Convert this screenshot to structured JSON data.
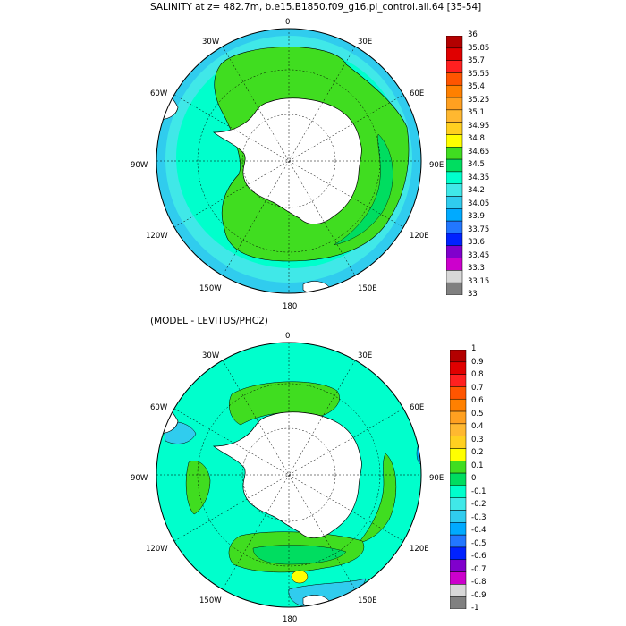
{
  "panels": [
    {
      "title": "SALINITY at z= 482.7m, b.e15.B1850.f09_g16.pi_control.all.64 [35-54]",
      "colorbar": {
        "labels": [
          "36",
          "35.85",
          "35.7",
          "35.55",
          "35.4",
          "35.25",
          "35.1",
          "34.95",
          "34.8",
          "34.65",
          "34.5",
          "34.35",
          "34.2",
          "34.05",
          "33.9",
          "33.75",
          "33.6",
          "33.45",
          "33.3",
          "33.15",
          "33"
        ],
        "colors": [
          "#b30000",
          "#e00000",
          "#ff2020",
          "#ff5500",
          "#ff8000",
          "#ffa020",
          "#ffb830",
          "#ffd020",
          "#ffff00",
          "#40dd20",
          "#00dd60",
          "#00ffcc",
          "#40e8e8",
          "#30ccee",
          "#00aaff",
          "#2277ff",
          "#0022ff",
          "#8000cc",
          "#cc00cc",
          "#d8d8d8",
          "#808080"
        ]
      },
      "map_labels": {
        "lon_0": "0",
        "lon_30e": "30E",
        "lon_60e": "60E",
        "lon_90e": "90E",
        "lon_120e": "120E",
        "lon_150e": "150E",
        "lon_180": "180",
        "lon_150w": "150W",
        "lon_120w": "120W",
        "lon_90w": "90W",
        "lon_60w": "60W",
        "lon_30w": "30W"
      }
    },
    {
      "title": "(MODEL - LEVITUS/PHC2)",
      "colorbar": {
        "labels": [
          "1",
          "0.9",
          "0.8",
          "0.7",
          "0.6",
          "0.5",
          "0.4",
          "0.3",
          "0.2",
          "0.1",
          "0",
          "-0.1",
          "-0.2",
          "-0.3",
          "-0.4",
          "-0.5",
          "-0.6",
          "-0.7",
          "-0.8",
          "-0.9",
          "-1"
        ],
        "colors": [
          "#b30000",
          "#e00000",
          "#ff2020",
          "#ff5500",
          "#ff8000",
          "#ffa020",
          "#ffb830",
          "#ffd020",
          "#ffff00",
          "#40dd20",
          "#00dd60",
          "#00ffcc",
          "#40e8e8",
          "#30ccee",
          "#00aaff",
          "#2277ff",
          "#0022ff",
          "#8000cc",
          "#cc00cc",
          "#d8d8d8",
          "#808080"
        ]
      },
      "map_labels": {
        "lon_0": "0",
        "lon_30e": "30E",
        "lon_60e": "60E",
        "lon_90e": "90E",
        "lon_120e": "120E",
        "lon_150e": "150E",
        "lon_180": "180",
        "lon_150w": "150W",
        "lon_120w": "120W",
        "lon_90w": "90W",
        "lon_60w": "60W",
        "lon_30w": "30W"
      }
    }
  ],
  "colors": {
    "land": "#ffffff",
    "ocean_cyan": "#00ffcc",
    "ocean_light": "#40e8e8",
    "ocean_blue": "#30ccee",
    "green": "#40dd20",
    "green2": "#00dd60",
    "yellow": "#ffff00"
  }
}
